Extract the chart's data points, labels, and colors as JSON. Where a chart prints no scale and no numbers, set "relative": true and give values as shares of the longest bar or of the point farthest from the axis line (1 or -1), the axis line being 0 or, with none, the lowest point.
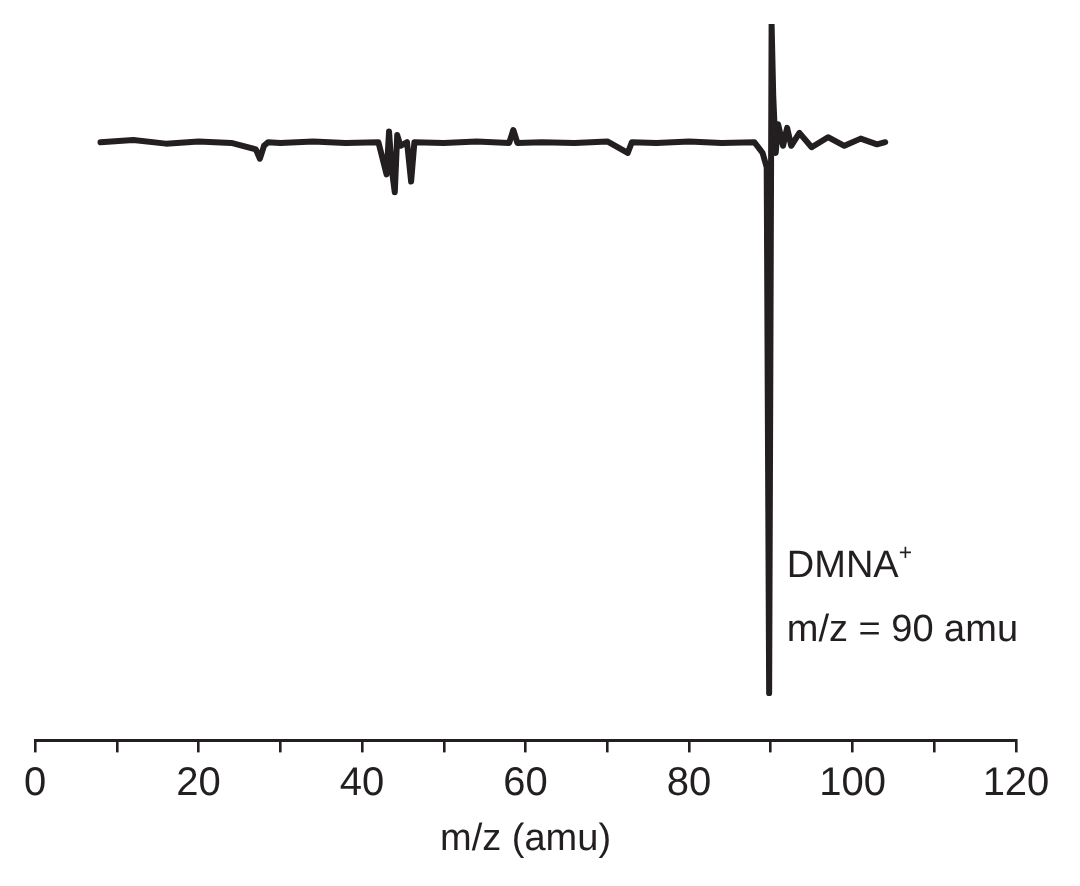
{
  "chart_data": {
    "type": "line",
    "relative": true,
    "xlabel": "m/z (amu)",
    "xlim": [
      0,
      120
    ],
    "xticks": [
      0,
      {
        "value": 10,
        "label": null
      },
      20,
      {
        "value": 30,
        "label": null
      },
      40,
      {
        "value": 50,
        "label": null
      },
      60,
      {
        "value": 70,
        "label": null
      },
      80,
      {
        "value": 90,
        "label": null
      },
      100,
      {
        "value": 110,
        "label": null
      },
      120
    ],
    "grid": false,
    "legend": false,
    "marker": "none",
    "line_style": "solid",
    "tick_labels": "x",
    "series": [
      {
        "color": "#231f20",
        "x": [
          8,
          12,
          16,
          20,
          24,
          27,
          27.5,
          28,
          28.5,
          30,
          34,
          38,
          42,
          43,
          43.3,
          43.6,
          44,
          44.3,
          44.7,
          45.5,
          46,
          46.4,
          50,
          54,
          58,
          58.5,
          59,
          62,
          66,
          70,
          72.5,
          73,
          76,
          80,
          84,
          88,
          89,
          89.5,
          89.8,
          90.1,
          90.3,
          90.6,
          90.9,
          91.5,
          92,
          92.5,
          93.5,
          95,
          97,
          99,
          101,
          103,
          104
        ],
        "values": [
          0.835,
          0.838,
          0.833,
          0.836,
          0.834,
          0.825,
          0.812,
          0.83,
          0.835,
          0.834,
          0.836,
          0.834,
          0.835,
          0.79,
          0.85,
          0.8,
          0.765,
          0.845,
          0.83,
          0.835,
          0.78,
          0.835,
          0.834,
          0.836,
          0.834,
          0.852,
          0.834,
          0.835,
          0.834,
          0.836,
          0.82,
          0.835,
          0.834,
          0.836,
          0.834,
          0.835,
          0.82,
          0.8,
          0.066,
          1.0,
          0.9,
          0.82,
          0.86,
          0.83,
          0.855,
          0.83,
          0.848,
          0.828,
          0.842,
          0.83,
          0.84,
          0.832,
          0.835
        ]
      }
    ],
    "annotations": [
      {
        "text": "DMNA$^{+}$",
        "x": 90,
        "y": 0.066
      },
      {
        "text": "m/z = 90 amu",
        "x": 90,
        "y": 0.066
      }
    ]
  }
}
